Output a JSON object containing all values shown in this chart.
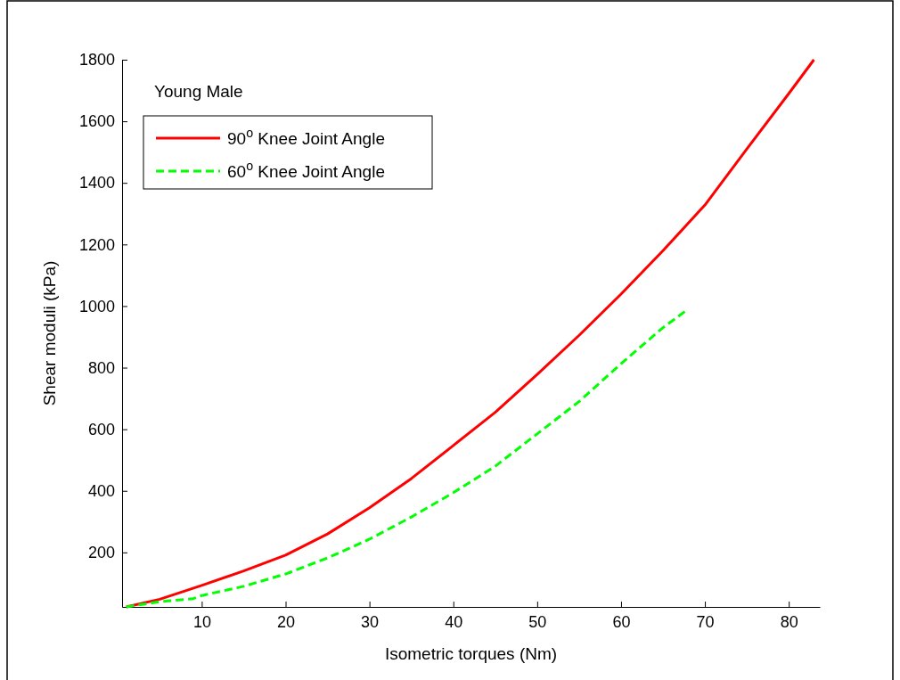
{
  "chart_data": {
    "type": "line",
    "xlabel": "Isometric torques (Nm)",
    "ylabel": "Shear moduli (kPa)",
    "annotations": [
      "Young Male"
    ],
    "xlim": [
      0.5,
      83.7
    ],
    "xticks": [
      10,
      20,
      30,
      40,
      50,
      60,
      70,
      80
    ],
    "ylim": [
      23,
      1800
    ],
    "yticks": [
      200,
      400,
      600,
      800,
      1000,
      1200,
      1400,
      1600,
      1800
    ],
    "grid": false,
    "legend": "top left",
    "marker": "none",
    "series": [
      {
        "name": "90$^{o}$ Knee Joint Angle",
        "color": "#ff0000",
        "line_style": "solid",
        "x": [
          1,
          5,
          10,
          15,
          20,
          25,
          30,
          35,
          40,
          45,
          50,
          55,
          60,
          65,
          70,
          75,
          80,
          83
        ],
        "values": [
          23,
          48,
          93,
          140,
          191,
          260,
          345,
          440,
          547,
          655,
          778,
          905,
          1039,
          1180,
          1328,
          1510,
          1690,
          1800
        ]
      },
      {
        "name": "60$^{o}$ Knee Joint Angle",
        "color": "#00ff00",
        "line_style": "dashed",
        "x": [
          1,
          5,
          9,
          10,
          15,
          20,
          25,
          30,
          35,
          40,
          45,
          50,
          55,
          60,
          65,
          68
        ],
        "values": [
          23,
          40,
          50,
          60,
          90,
          130,
          182,
          243,
          315,
          394,
          480,
          585,
          690,
          813,
          930,
          990
        ]
      }
    ]
  }
}
